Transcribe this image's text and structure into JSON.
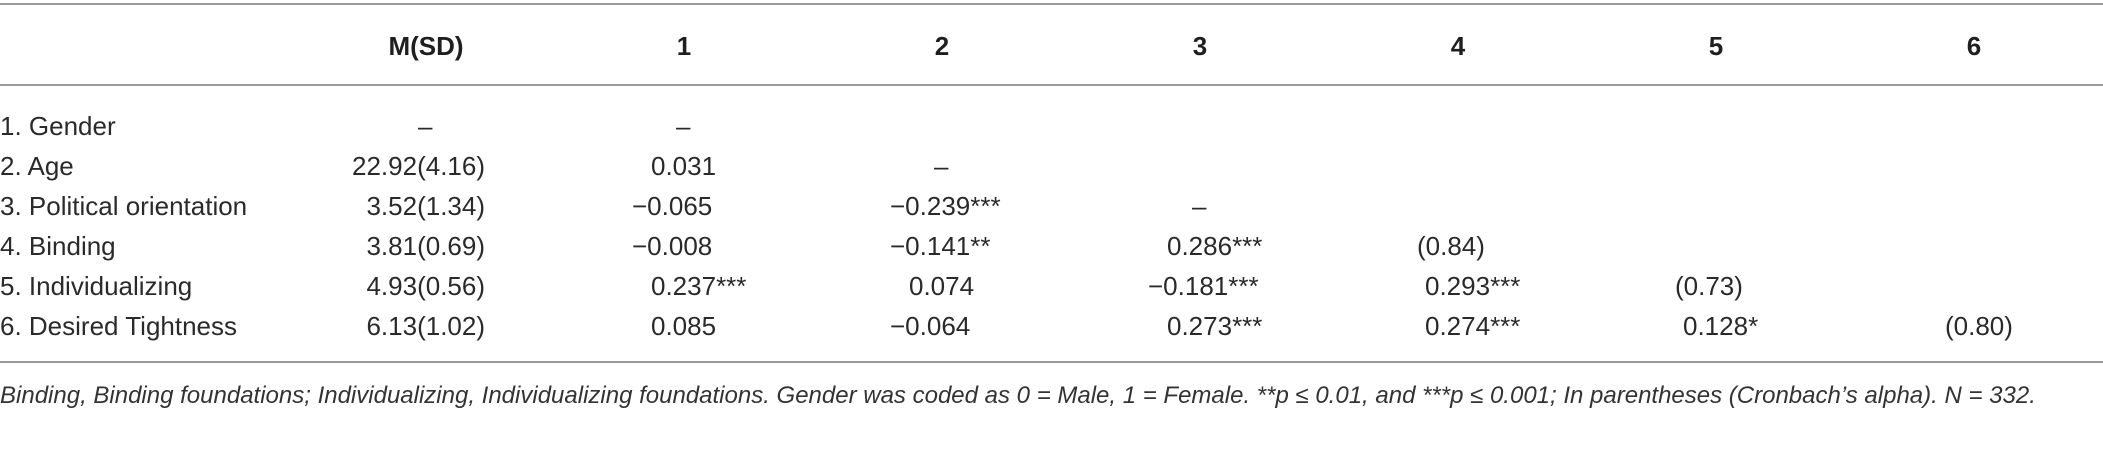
{
  "table": {
    "headers": [
      "",
      "M(SD)",
      "1",
      "2",
      "3",
      "4",
      "5",
      "6"
    ],
    "rows": [
      {
        "label": "1. Gender",
        "msd": "–",
        "cells": [
          "–",
          "",
          "",
          "",
          "",
          ""
        ]
      },
      {
        "label": "2. Age",
        "msd": "22.92(4.16)",
        "cells": [
          "0.031",
          "–",
          "",
          "",
          "",
          ""
        ]
      },
      {
        "label": "3. Political orientation",
        "msd": "3.52(1.34)",
        "cells": [
          "−0.065",
          "−0.239***",
          "–",
          "",
          "",
          ""
        ]
      },
      {
        "label": "4. Binding",
        "msd": "3.81(0.69)",
        "cells": [
          "−0.008",
          "−0.141**",
          "0.286***",
          "(0.84)",
          "",
          ""
        ]
      },
      {
        "label": "5. Individualizing",
        "msd": "4.93(0.56)",
        "cells": [
          "0.237***",
          "0.074",
          "−0.181***",
          "0.293***",
          "(0.73)",
          ""
        ]
      },
      {
        "label": "6. Desired Tightness",
        "msd": "6.13(1.02)",
        "cells": [
          "0.085",
          "−0.064",
          "0.273***",
          "0.274***",
          "0.128*",
          "(0.80)"
        ]
      }
    ],
    "note": "Binding, Binding foundations; Individualizing, Individualizing foundations. Gender was coded as 0 = Male, 1 = Female. **p ≤ 0.01, and ***p ≤ 0.001; In parentheses (Cronbach’s alpha). N = 332."
  }
}
